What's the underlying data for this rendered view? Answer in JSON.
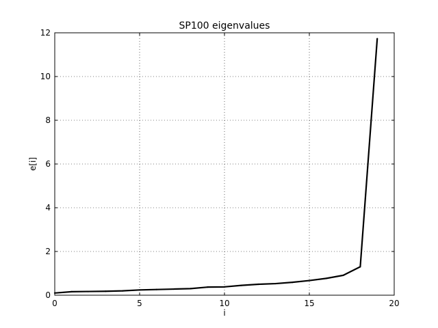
{
  "chart_data": {
    "type": "line",
    "title": "SP100 eigenvalues",
    "xlabel": "i",
    "ylabel": "e[i]",
    "xlim": [
      0,
      20
    ],
    "ylim": [
      0,
      12
    ],
    "xticks": [
      0,
      5,
      10,
      15,
      20
    ],
    "yticks": [
      0,
      2,
      4,
      6,
      8,
      10,
      12
    ],
    "grid": true,
    "line_color": "#000000",
    "series": [
      {
        "x": [
          0,
          1,
          2,
          3,
          4,
          5,
          6,
          7,
          8,
          9,
          10,
          11,
          12,
          13,
          14,
          15,
          16,
          17,
          18,
          19
        ],
        "values": [
          0.1,
          0.16,
          0.17,
          0.18,
          0.2,
          0.24,
          0.26,
          0.28,
          0.3,
          0.37,
          0.38,
          0.45,
          0.5,
          0.53,
          0.59,
          0.67,
          0.77,
          0.91,
          1.3,
          11.73
        ]
      }
    ]
  }
}
